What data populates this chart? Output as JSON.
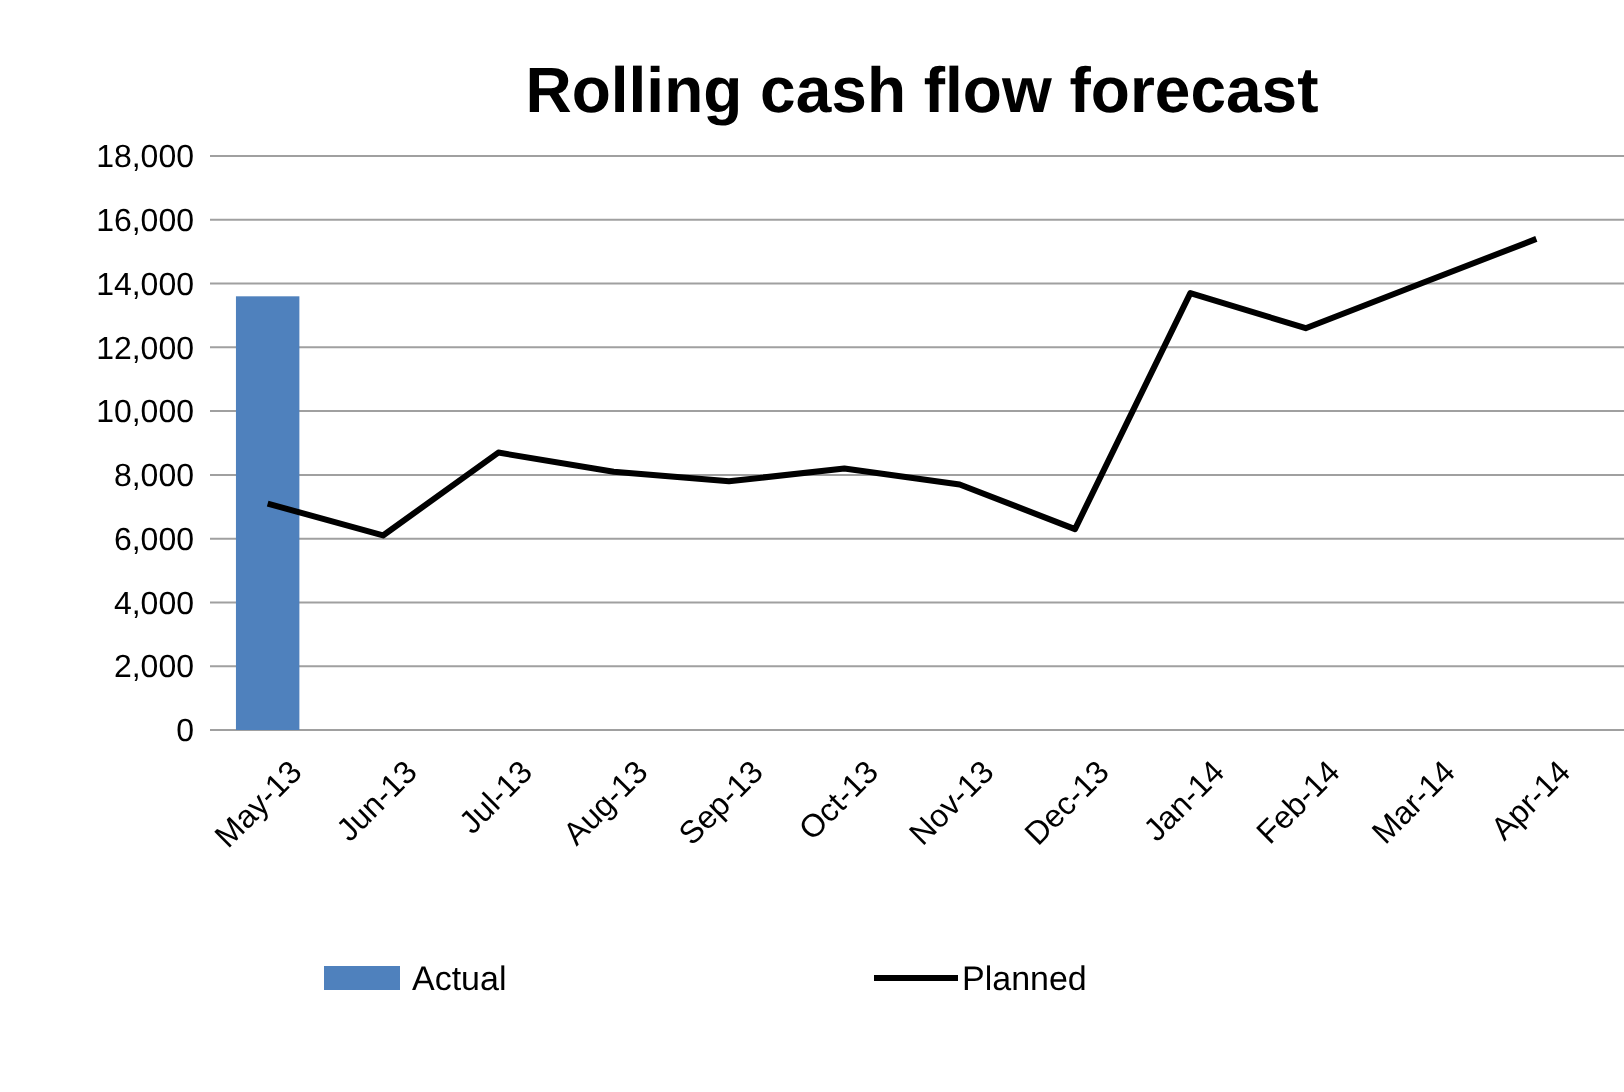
{
  "chart_data": {
    "type": "bar",
    "title": "Rolling cash flow forecast",
    "categories": [
      "May-13",
      "Jun-13",
      "Jul-13",
      "Aug-13",
      "Sep-13",
      "Oct-13",
      "Nov-13",
      "Dec-13",
      "Jan-14",
      "Feb-14",
      "Mar-14",
      "Apr-14"
    ],
    "series": [
      {
        "name": "Actual",
        "color": "#4f81bd",
        "values": [
          13600,
          null,
          null,
          null,
          null,
          null,
          null,
          null,
          null,
          null,
          null,
          null
        ]
      },
      {
        "name": "Planned",
        "type": "line",
        "color": "#000000",
        "values": [
          7100,
          6100,
          8700,
          8100,
          7800,
          8200,
          7700,
          6300,
          13700,
          12600,
          14000,
          15400
        ]
      }
    ],
    "ylim": [
      0,
      18000
    ],
    "yticks": [
      {
        "value": 0,
        "label": "0"
      },
      {
        "value": 2000,
        "label": "2,000"
      },
      {
        "value": 4000,
        "label": "4,000"
      },
      {
        "value": 6000,
        "label": "6,000"
      },
      {
        "value": 8000,
        "label": "8,000"
      },
      {
        "value": 10000,
        "label": "10,000"
      },
      {
        "value": 12000,
        "label": "12,000"
      },
      {
        "value": 14000,
        "label": "14,000"
      },
      {
        "value": 16000,
        "label": "16,000"
      },
      {
        "value": 18000,
        "label": "18,000"
      }
    ],
    "grid": "y",
    "legend": "bottom",
    "marker": "none",
    "line_style": "solid"
  }
}
